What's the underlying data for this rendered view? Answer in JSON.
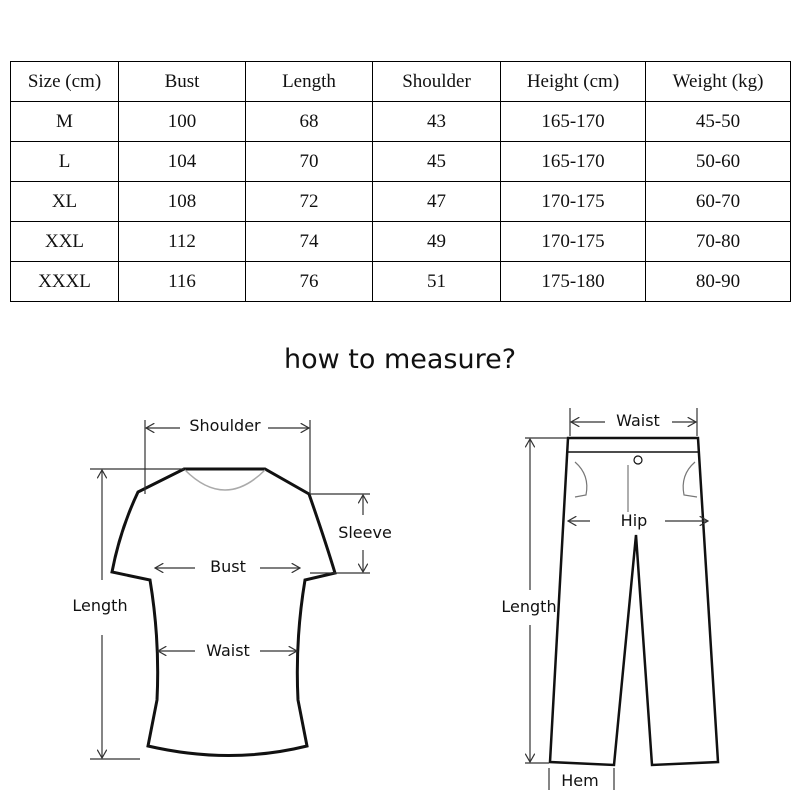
{
  "table": {
    "headers": [
      "Size (cm)",
      "Bust",
      "Length",
      "Shoulder",
      "Height (cm)",
      "Weight (kg)"
    ],
    "rows": [
      [
        "M",
        "100",
        "68",
        "43",
        "165-170",
        "45-50"
      ],
      [
        "L",
        "104",
        "70",
        "45",
        "165-170",
        "50-60"
      ],
      [
        "XL",
        "108",
        "72",
        "47",
        "170-175",
        "60-70"
      ],
      [
        "XXL",
        "112",
        "74",
        "49",
        "170-175",
        "70-80"
      ],
      [
        "XXXL",
        "116",
        "76",
        "51",
        "175-180",
        "80-90"
      ]
    ]
  },
  "title": "how to measure?",
  "shirt_labels": {
    "shoulder": "Shoulder",
    "sleeve": "Sleeve",
    "bust": "Bust",
    "length": "Length",
    "waist": "Waist"
  },
  "pants_labels": {
    "waist": "Waist",
    "hip": "Hip",
    "length": "Length",
    "hem": "Hem"
  }
}
